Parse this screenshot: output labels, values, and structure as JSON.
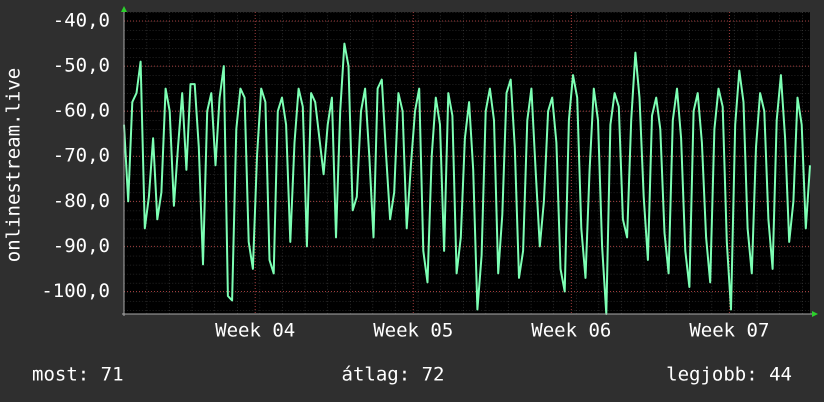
{
  "chart_data": {
    "type": "line",
    "y_label": "onlinestream.live",
    "series": [
      {
        "name": "onlinestream.live",
        "color": "#7dffb4",
        "values": [
          -63,
          -80,
          -58,
          -56,
          -49,
          -86,
          -79,
          -66,
          -84,
          -78,
          -55,
          -60,
          -81,
          -68,
          -56,
          -73,
          -54,
          -54,
          -68,
          -94,
          -60,
          -56,
          -72,
          -57,
          -50,
          -101,
          -102,
          -64,
          -55,
          -57,
          -89,
          -95,
          -70,
          -55,
          -58,
          -93,
          -96,
          -60,
          -57,
          -63,
          -89,
          -67,
          -55,
          -59,
          -90,
          -56,
          -58,
          -66,
          -74,
          -63,
          -57,
          -88,
          -60,
          -45,
          -50,
          -82,
          -79,
          -60,
          -55,
          -70,
          -88,
          -55,
          -53,
          -69,
          -84,
          -78,
          -56,
          -60,
          -86,
          -72,
          -60,
          -55,
          -91,
          -98,
          -70,
          -57,
          -63,
          -91,
          -56,
          -61,
          -96,
          -88,
          -66,
          -58,
          -73,
          -104,
          -92,
          -60,
          -55,
          -62,
          -96,
          -83,
          -56,
          -53,
          -68,
          -97,
          -91,
          -62,
          -55,
          -73,
          -90,
          -80,
          -60,
          -57,
          -67,
          -95,
          -100,
          -62,
          -52,
          -57,
          -86,
          -97,
          -73,
          -55,
          -62,
          -90,
          -105,
          -63,
          -56,
          -59,
          -84,
          -88,
          -62,
          -47,
          -57,
          -79,
          -93,
          -61,
          -57,
          -64,
          -87,
          -96,
          -62,
          -55,
          -66,
          -91,
          -99,
          -60,
          -56,
          -67,
          -88,
          -98,
          -64,
          -55,
          -59,
          -89,
          -104,
          -63,
          -51,
          -58,
          -86,
          -96,
          -68,
          -56,
          -60,
          -84,
          -95,
          -62,
          -52,
          -66,
          -89,
          -80,
          -57,
          -63,
          -86,
          -72
        ]
      }
    ],
    "xlim": [
      3.17,
      7.51
    ],
    "xticks": [
      {
        "value": 4,
        "label": "Week 04"
      },
      {
        "value": 5,
        "label": "Week 05"
      },
      {
        "value": 6,
        "label": "Week 06"
      },
      {
        "value": 7,
        "label": "Week 07"
      }
    ],
    "ylim": [
      -105,
      -38
    ],
    "yticks": [
      {
        "value": -40,
        "label": "-40,0"
      },
      {
        "value": -50,
        "label": "-50,0"
      },
      {
        "value": -60,
        "label": "-60,0"
      },
      {
        "value": -70,
        "label": "-70,0"
      },
      {
        "value": -80,
        "label": "-80,0"
      },
      {
        "value": -90,
        "label": "-90,0"
      },
      {
        "value": -100,
        "label": "-100,0"
      }
    ],
    "grid": true,
    "annotations": [
      "most: 71",
      "átlag: 72",
      "legjobb: 44"
    ]
  }
}
